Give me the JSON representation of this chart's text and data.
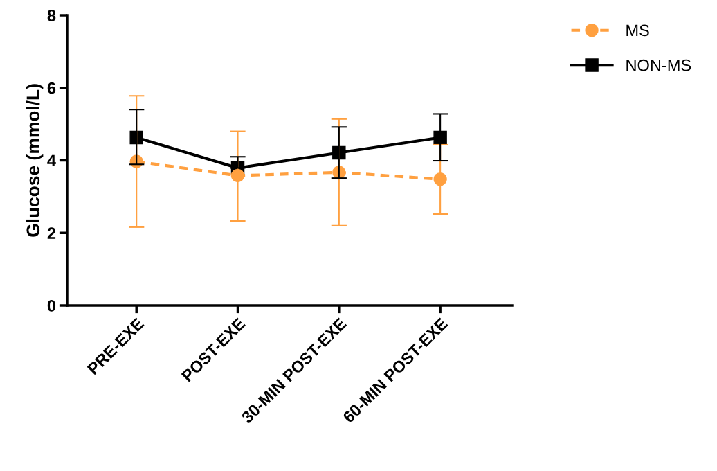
{
  "chart_data": {
    "type": "line",
    "ylabel": "Glucose (mmol/L)",
    "categories": [
      "PRE-EXE",
      "POST-EXE",
      "30-MIN POST-EXE",
      "60-MIN POST-EXE"
    ],
    "series": [
      {
        "name": "MS",
        "color": "#ffa040",
        "values": [
          3.97,
          3.58,
          3.67,
          3.48
        ],
        "errors": [
          [
            2.16,
            5.78
          ],
          [
            2.33,
            4.8
          ],
          [
            2.2,
            5.14
          ],
          [
            2.52,
            4.43
          ]
        ],
        "marker": "circle",
        "line_style": "dashed"
      },
      {
        "name": "NON-MS",
        "color": "#000000",
        "values": [
          4.63,
          3.79,
          4.21,
          4.63
        ],
        "errors": [
          [
            3.89,
            5.4
          ],
          [
            3.79,
            4.1
          ],
          [
            3.51,
            4.92
          ],
          [
            3.99,
            5.28
          ]
        ],
        "marker": "square",
        "line_style": "solid"
      }
    ],
    "ylim": [
      0,
      8
    ],
    "yticks": [
      0,
      2,
      4,
      6,
      8
    ],
    "grid": false,
    "legend": "top right"
  }
}
